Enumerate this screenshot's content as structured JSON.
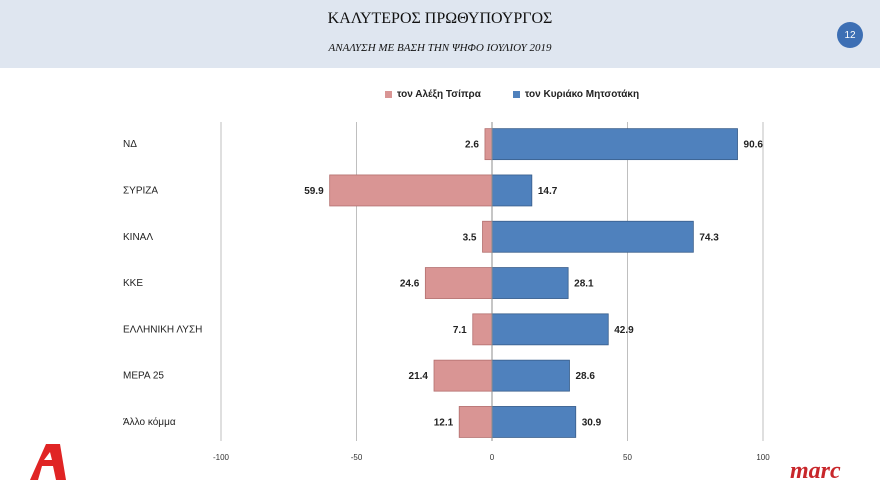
{
  "header": {
    "title": "ΚΑΛΥΤΕΡΟΣ ΠΡΩΘΥΠΟΥΡΓΟΣ",
    "subtitle": "ΑΝΑΛΥΣΗ ΜΕ ΒΑΣΗ ΤΗΝ ΨΗΦΟ ΙΟΥΛΙΟΥ 2019",
    "page_number": "12"
  },
  "logos": {
    "left": "alpha-logo",
    "right_text": "marc"
  },
  "colors": {
    "header_bg": "#dfe6f0",
    "tsipras": "#d99594",
    "mitsotakis": "#4f81bd",
    "page_badge": "#3d6fb4",
    "brand_red": "#c8262a"
  },
  "chart_data": {
    "type": "bar",
    "orientation": "horizontal",
    "categories": [
      "ΝΔ",
      "ΣΥΡΙΖΑ",
      "ΚΙΝΑΛ",
      "ΚΚΕ",
      "ΕΛΛΗΝΙΚΗ ΛΥΣΗ",
      "ΜΕΡΑ 25",
      "Άλλο κόμμα"
    ],
    "series": [
      {
        "name": "τον Αλέξη Τσίπρα",
        "values": [
          2.6,
          59.9,
          3.5,
          24.6,
          7.1,
          21.4,
          12.1
        ],
        "plotted_as": "negative",
        "color": "#d99594"
      },
      {
        "name": "τον Κυριάκο Μητσοτάκη",
        "values": [
          90.6,
          14.7,
          74.3,
          28.1,
          42.9,
          28.6,
          30.9
        ],
        "color": "#4f81bd"
      }
    ],
    "xlim": [
      -100,
      100
    ],
    "xticks": [
      -100,
      -50,
      0,
      50,
      100
    ],
    "grid": "vertical",
    "legend": "top"
  }
}
